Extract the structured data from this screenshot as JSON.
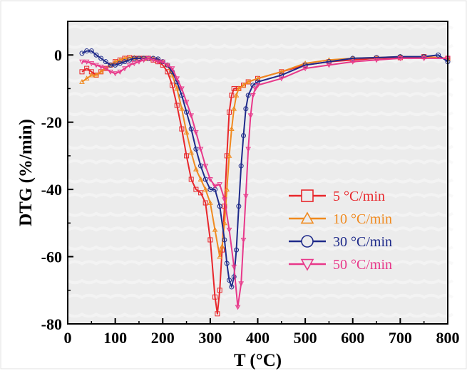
{
  "chart_data": {
    "type": "line",
    "title": "",
    "xlabel": "T (°C)",
    "ylabel": "DTG (%/min)",
    "xlim": [
      0,
      800
    ],
    "ylim": [
      -80,
      10
    ],
    "x_ticks": [
      0,
      100,
      200,
      300,
      400,
      500,
      600,
      700,
      800
    ],
    "y_ticks": [
      0,
      -20,
      -40,
      -60,
      -80
    ],
    "x_tick_labels": [
      "0",
      "100",
      "200",
      "300",
      "400",
      "500",
      "600",
      "700",
      "800"
    ],
    "y_tick_labels": [
      "0",
      "-20",
      "-40",
      "-60",
      "-80"
    ],
    "grid": false,
    "legend_position": "center-right",
    "series": [
      {
        "name": "5 °C/min",
        "color": "#e8262b",
        "marker": "square",
        "points": [
          [
            30,
            -5
          ],
          [
            40,
            -4
          ],
          [
            50,
            -5
          ],
          [
            60,
            -6
          ],
          [
            70,
            -5
          ],
          [
            80,
            -4
          ],
          [
            90,
            -3
          ],
          [
            100,
            -2
          ],
          [
            110,
            -1.5
          ],
          [
            120,
            -1
          ],
          [
            130,
            -0.8
          ],
          [
            140,
            -1
          ],
          [
            150,
            -1
          ],
          [
            160,
            -1
          ],
          [
            170,
            -1
          ],
          [
            180,
            -1.5
          ],
          [
            190,
            -2
          ],
          [
            200,
            -3
          ],
          [
            210,
            -5
          ],
          [
            220,
            -9
          ],
          [
            230,
            -15
          ],
          [
            240,
            -22
          ],
          [
            250,
            -30
          ],
          [
            260,
            -37
          ],
          [
            270,
            -40
          ],
          [
            280,
            -41
          ],
          [
            290,
            -44
          ],
          [
            300,
            -55
          ],
          [
            310,
            -72
          ],
          [
            315,
            -77
          ],
          [
            320,
            -70
          ],
          [
            325,
            -58
          ],
          [
            330,
            -45
          ],
          [
            335,
            -30
          ],
          [
            340,
            -17
          ],
          [
            345,
            -12
          ],
          [
            350,
            -10
          ],
          [
            360,
            -10
          ],
          [
            370,
            -9
          ],
          [
            380,
            -8
          ],
          [
            400,
            -7
          ],
          [
            450,
            -5
          ],
          [
            500,
            -3
          ],
          [
            550,
            -2
          ],
          [
            600,
            -1.5
          ],
          [
            650,
            -1
          ],
          [
            700,
            -0.8
          ],
          [
            750,
            -0.5
          ],
          [
            800,
            -1
          ]
        ]
      },
      {
        "name": "10 °C/min",
        "color": "#f08a1f",
        "marker": "triangle-up",
        "points": [
          [
            30,
            -8
          ],
          [
            40,
            -7
          ],
          [
            50,
            -6
          ],
          [
            60,
            -6
          ],
          [
            70,
            -5
          ],
          [
            80,
            -4
          ],
          [
            90,
            -3
          ],
          [
            100,
            -2
          ],
          [
            110,
            -1.5
          ],
          [
            120,
            -1
          ],
          [
            130,
            -0.8
          ],
          [
            140,
            -0.8
          ],
          [
            150,
            -1
          ],
          [
            160,
            -1
          ],
          [
            170,
            -1
          ],
          [
            180,
            -1
          ],
          [
            190,
            -1.5
          ],
          [
            200,
            -2
          ],
          [
            210,
            -3
          ],
          [
            220,
            -6
          ],
          [
            230,
            -10
          ],
          [
            240,
            -16
          ],
          [
            250,
            -23
          ],
          [
            260,
            -29
          ],
          [
            270,
            -34
          ],
          [
            280,
            -37
          ],
          [
            290,
            -40
          ],
          [
            300,
            -44
          ],
          [
            310,
            -52
          ],
          [
            320,
            -60
          ],
          [
            325,
            -57
          ],
          [
            330,
            -50
          ],
          [
            335,
            -40
          ],
          [
            340,
            -30
          ],
          [
            345,
            -22
          ],
          [
            350,
            -16
          ],
          [
            355,
            -12
          ],
          [
            360,
            -10
          ],
          [
            370,
            -9
          ],
          [
            380,
            -8
          ],
          [
            400,
            -7
          ],
          [
            450,
            -5
          ],
          [
            500,
            -2.5
          ],
          [
            550,
            -1.5
          ],
          [
            600,
            -1
          ],
          [
            650,
            -0.8
          ],
          [
            700,
            -0.5
          ],
          [
            750,
            -0.5
          ],
          [
            800,
            -1
          ]
        ]
      },
      {
        "name": "30 °C/min",
        "color": "#1e2a8a",
        "marker": "circle",
        "points": [
          [
            30,
            0.5
          ],
          [
            40,
            1.2
          ],
          [
            50,
            1.2
          ],
          [
            60,
            0
          ],
          [
            70,
            -1
          ],
          [
            80,
            -2
          ],
          [
            90,
            -3
          ],
          [
            100,
            -3
          ],
          [
            110,
            -2.5
          ],
          [
            120,
            -2
          ],
          [
            130,
            -1.5
          ],
          [
            140,
            -1
          ],
          [
            150,
            -1
          ],
          [
            160,
            -1
          ],
          [
            170,
            -1
          ],
          [
            180,
            -1
          ],
          [
            190,
            -1.2
          ],
          [
            200,
            -2
          ],
          [
            210,
            -3
          ],
          [
            220,
            -5
          ],
          [
            230,
            -8
          ],
          [
            240,
            -12
          ],
          [
            250,
            -17
          ],
          [
            260,
            -22
          ],
          [
            270,
            -28
          ],
          [
            280,
            -33
          ],
          [
            290,
            -37
          ],
          [
            300,
            -40
          ],
          [
            310,
            -40
          ],
          [
            320,
            -45
          ],
          [
            330,
            -55
          ],
          [
            335,
            -62
          ],
          [
            340,
            -67
          ],
          [
            345,
            -69
          ],
          [
            350,
            -66
          ],
          [
            355,
            -58
          ],
          [
            360,
            -45
          ],
          [
            365,
            -33
          ],
          [
            370,
            -24
          ],
          [
            375,
            -16
          ],
          [
            380,
            -12
          ],
          [
            390,
            -9
          ],
          [
            400,
            -8
          ],
          [
            450,
            -6
          ],
          [
            500,
            -3
          ],
          [
            550,
            -2
          ],
          [
            600,
            -1
          ],
          [
            650,
            -0.8
          ],
          [
            700,
            -0.5
          ],
          [
            750,
            -0.5
          ],
          [
            780,
            0
          ],
          [
            800,
            -2
          ]
        ]
      },
      {
        "name": "50 °C/min",
        "color": "#e8388a",
        "marker": "triangle-down",
        "points": [
          [
            30,
            -2
          ],
          [
            40,
            -2
          ],
          [
            50,
            -2.5
          ],
          [
            60,
            -3
          ],
          [
            70,
            -3.5
          ],
          [
            80,
            -4
          ],
          [
            90,
            -5
          ],
          [
            100,
            -5.5
          ],
          [
            110,
            -5
          ],
          [
            120,
            -4
          ],
          [
            130,
            -3
          ],
          [
            140,
            -2.5
          ],
          [
            150,
            -2
          ],
          [
            160,
            -1.5
          ],
          [
            170,
            -1
          ],
          [
            180,
            -1.5
          ],
          [
            190,
            -2
          ],
          [
            200,
            -2
          ],
          [
            210,
            -3
          ],
          [
            220,
            -4
          ],
          [
            230,
            -7
          ],
          [
            240,
            -10
          ],
          [
            250,
            -14
          ],
          [
            260,
            -18
          ],
          [
            270,
            -23
          ],
          [
            280,
            -28
          ],
          [
            290,
            -33
          ],
          [
            300,
            -37
          ],
          [
            310,
            -39
          ],
          [
            320,
            -38.5
          ],
          [
            330,
            -43
          ],
          [
            340,
            -52
          ],
          [
            350,
            -63
          ],
          [
            358,
            -75
          ],
          [
            365,
            -68
          ],
          [
            370,
            -55
          ],
          [
            375,
            -42
          ],
          [
            380,
            -28
          ],
          [
            385,
            -18
          ],
          [
            390,
            -12
          ],
          [
            395,
            -10
          ],
          [
            400,
            -9
          ],
          [
            450,
            -7
          ],
          [
            500,
            -4
          ],
          [
            550,
            -3
          ],
          [
            600,
            -2
          ],
          [
            650,
            -1.5
          ],
          [
            700,
            -1
          ],
          [
            750,
            -1
          ],
          [
            800,
            -1
          ]
        ]
      }
    ]
  }
}
